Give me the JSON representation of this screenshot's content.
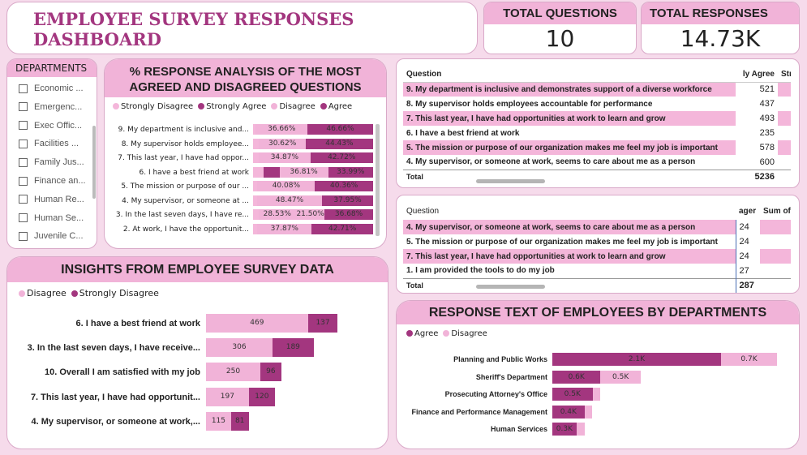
{
  "title": "EMPLOYEE SURVEY RESPONSES DASHBOARD",
  "kpis": [
    {
      "label": "TOTAL QUESTIONS",
      "value": "10"
    },
    {
      "label": "TOTAL RESPONSES",
      "value": "14.73K"
    }
  ],
  "departments": {
    "header": "DEPARTMENTS",
    "items": [
      "Economic ...",
      "Emergenc...",
      "Exec Offic...",
      "Facilities ...",
      "Family Jus...",
      "Finance an...",
      "Human Re...",
      "Human Se...",
      "Juvenile C..."
    ]
  },
  "response_analysis": {
    "title_line1": "% RESPONSE ANALYSIS OF THE MOST",
    "title_line2": "AGREED AND DISAGREED QUESTIONS",
    "legend": [
      "Strongly Disagree",
      "Strongly Agree",
      "Disagree",
      "Agree"
    ],
    "colors": {
      "strongly_disagree": "#f4b6da",
      "strongly_agree": "#a3367f",
      "disagree": "#f1b3d8",
      "agree": "#a3367f"
    }
  },
  "insights": {
    "title": "INSIGHTS FROM EMPLOYEE SURVEY DATA",
    "legend": [
      "Disagree",
      "Strongly Disagree"
    ]
  },
  "table1": {
    "col_question": "Question",
    "col_value": "ly Agree",
    "col_extra": "Str",
    "rows": [
      {
        "q": "9. My department is inclusive and demonstrates support of a diverse workforce",
        "v": "521"
      },
      {
        "q": "8. My supervisor holds employees accountable for performance",
        "v": "437"
      },
      {
        "q": "7. This last year, I have had opportunities at work to learn and grow",
        "v": "493"
      },
      {
        "q": "6. I have a best friend at work",
        "v": "235"
      },
      {
        "q": "5. The mission or purpose of our organization makes me feel my job is important",
        "v": "578"
      },
      {
        "q": "4. My supervisor, or someone at work, seems to care about me as a person",
        "v": "600"
      }
    ],
    "total_label": "Total",
    "total_value": "5236"
  },
  "table2": {
    "col_question": "Question",
    "col_value": "ager",
    "col_extra": "Sum of",
    "rows": [
      {
        "q": "4. My supervisor, or someone at work, seems to care about me as a person",
        "v": "24"
      },
      {
        "q": "5. The mission or purpose of our organization makes me feel my job is important",
        "v": "24"
      },
      {
        "q": "7. This last year, I have had opportunities at work to learn and grow",
        "v": "24"
      },
      {
        "q": "1. I am provided the tools to do my job",
        "v": "27"
      }
    ],
    "total_label": "Total",
    "total_value": "287"
  },
  "dept_response": {
    "title": "RESPONSE TEXT OF EMPLOYEES BY DEPARTMENTS",
    "legend": [
      "Agree",
      "Disagree"
    ]
  },
  "chart_data": [
    {
      "type": "bar",
      "orientation": "horizontal-stacked-100",
      "categories": [
        "9. My department is inclusive and...",
        "8. My supervisor holds employee...",
        "7. This last year, I have had oppor...",
        "6. I have a best friend at work",
        "5. The mission or purpose of our ...",
        "4. My supervisor, or someone at ...",
        "3. In the last seven days, I have re...",
        "2. At work, I have the opportunit..."
      ],
      "series": [
        {
          "name": "Strongly Disagree",
          "values": [
            2,
            4,
            4,
            8,
            3,
            3,
            4,
            3
          ],
          "labels": [
            "",
            "",
            "",
            "",
            "",
            "",
            "",
            ""
          ]
        },
        {
          "name": "Strongly Agree",
          "values": [
            0,
            0,
            0,
            12,
            0,
            0,
            0,
            0
          ],
          "labels": [
            "",
            "",
            "",
            "",
            "",
            "",
            "",
            ""
          ]
        },
        {
          "name": "Disagree",
          "values": [
            36.66,
            30.62,
            34.87,
            36.81,
            40.08,
            48.47,
            28.53,
            37.87
          ],
          "labels": [
            "36.66%",
            "30.62%",
            "34.87%",
            "36.81%",
            "40.08%",
            "48.47%",
            "28.53%",
            "37.87%"
          ]
        },
        {
          "name": "Disagree-extra",
          "values": [
            0,
            0,
            0,
            0,
            0,
            0,
            21.5,
            0
          ],
          "labels": [
            "",
            "",
            "",
            "",
            "",
            "",
            "21.50%",
            ""
          ]
        },
        {
          "name": "Agree",
          "values": [
            46.66,
            44.43,
            42.72,
            33.99,
            40.36,
            37.95,
            36.68,
            42.71
          ],
          "labels": [
            "46.66%",
            "44.43%",
            "42.72%",
            "33.99%",
            "40.36%",
            "37.95%",
            "36.68%",
            "42.71%"
          ]
        }
      ]
    },
    {
      "type": "bar",
      "orientation": "horizontal-stacked",
      "categories": [
        "6. I have a best friend at work",
        "3. In the last seven days, I have receive...",
        "10. Overall I am satisfied with my job",
        "7. This last year, I have had opportunit...",
        "4. My supervisor, or someone at work,..."
      ],
      "series": [
        {
          "name": "Disagree",
          "values": [
            469,
            306,
            250,
            197,
            115
          ]
        },
        {
          "name": "Strongly Disagree",
          "values": [
            137,
            189,
            96,
            120,
            81
          ]
        }
      ]
    },
    {
      "type": "bar",
      "orientation": "horizontal-stacked",
      "categories": [
        "Planning and Public Works",
        "Sheriff's Department",
        "Prosecuting Attorney's Office",
        "Finance and Performance Management",
        "Human Services"
      ],
      "series": [
        {
          "name": "Agree",
          "values": [
            2.1,
            0.6,
            0.5,
            0.4,
            0.3
          ],
          "labels": [
            "2.1K",
            "0.6K",
            "0.5K",
            "0.4K",
            "0.3K"
          ]
        },
        {
          "name": "Disagree",
          "values": [
            0.7,
            0.5,
            0.1,
            0.1,
            0.1
          ],
          "labels": [
            "0.7K",
            "0.5K",
            "",
            "",
            ""
          ]
        }
      ]
    }
  ]
}
